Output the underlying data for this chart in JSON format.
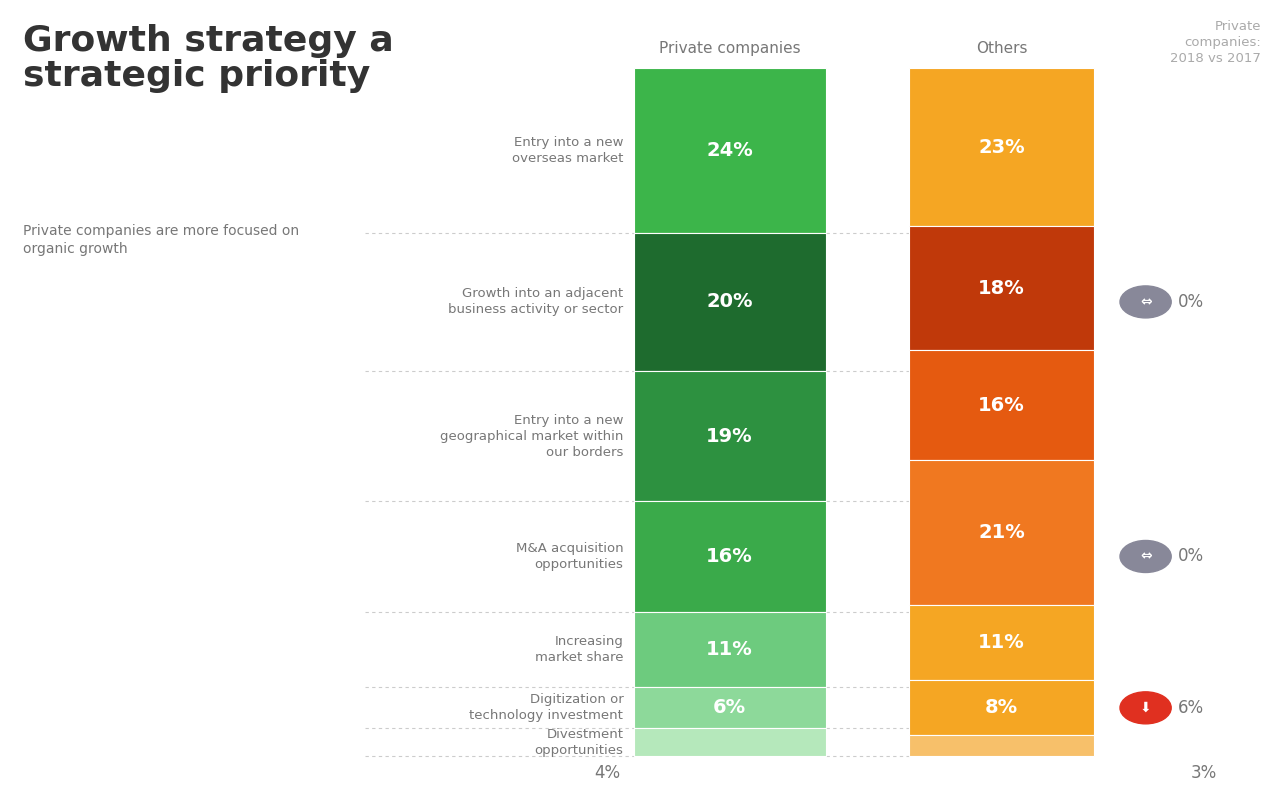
{
  "title": "Growth strategy a\nstrategic priority",
  "subtitle": "Private companies are more focused on\norganic growth",
  "col1_header": "Private companies",
  "col2_header": "Others",
  "col3_header": "Private\ncompanies:\n2018 vs 2017",
  "categories": [
    "Entry into a new\noverseas market",
    "Growth into an adjacent\nbusiness activity or sector",
    "Entry into a new\ngeographical market within\nour borders",
    "M&A acquisition\nopportunities",
    "Increasing\nmarket share",
    "Digitization or\ntechnology investment",
    "Divestment\nopportunities"
  ],
  "private_values": [
    24,
    20,
    19,
    16,
    11,
    6,
    4
  ],
  "others_values": [
    23,
    18,
    16,
    21,
    11,
    8,
    3
  ],
  "private_colors": [
    "#3cb54a",
    "#1e6b2e",
    "#2d9140",
    "#3aaa4a",
    "#6dcb7e",
    "#8dd99a",
    "#b5e8bb"
  ],
  "others_colors": [
    "#f5a623",
    "#c0390a",
    "#e55a10",
    "#f07820",
    "#f5a623",
    "#f5a623",
    "#f7c06a"
  ],
  "comp_annotations": [
    {
      "idx": 1,
      "type": "flat",
      "val": "0%"
    },
    {
      "idx": 3,
      "type": "flat",
      "val": "0%"
    },
    {
      "idx": 5,
      "type": "down",
      "val": "6%"
    }
  ],
  "bottom_left_label": "4%",
  "bottom_right_label": "3%",
  "background_color": "#ffffff",
  "label_color": "#777777",
  "title_color": "#333333",
  "icon_flat_color": "#888899",
  "icon_down_color": "#e03020"
}
